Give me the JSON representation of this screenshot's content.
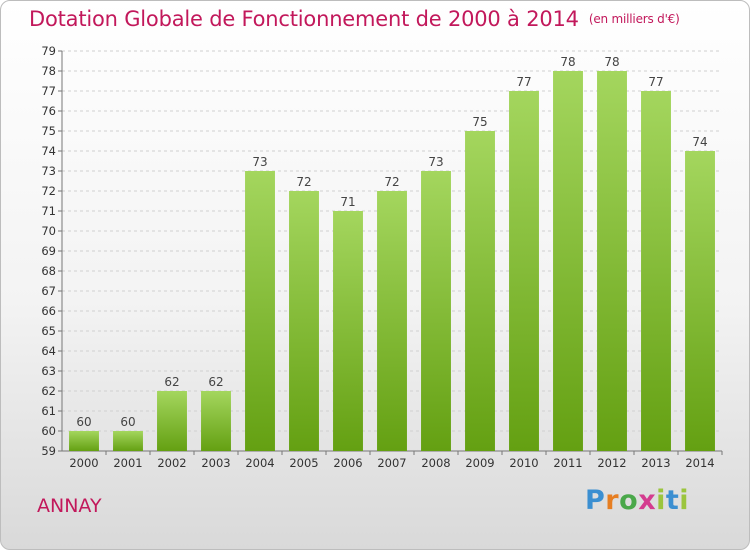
{
  "header": {
    "title": "Dotation Globale de Fonctionnement de 2000 à 2014",
    "unit": "(en milliers d'€)"
  },
  "footer": {
    "city": "ANNAY",
    "logo": [
      "P",
      "r",
      "o",
      "x",
      "i",
      "t",
      "i"
    ]
  },
  "colors": {
    "title": "#c2185b",
    "bar_light": "#a4d65e",
    "bar_dark": "#64a012"
  },
  "chart_data": {
    "type": "bar",
    "title": "Dotation Globale de Fonctionnement de 2000 à 2014",
    "subtitle": "(en milliers d'€)",
    "xlabel": "",
    "ylabel": "",
    "categories": [
      "2000",
      "2001",
      "2002",
      "2003",
      "2004",
      "2005",
      "2006",
      "2007",
      "2008",
      "2009",
      "2010",
      "2011",
      "2012",
      "2013",
      "2014"
    ],
    "values": [
      60,
      60,
      62,
      62,
      73,
      72,
      71,
      72,
      73,
      75,
      77,
      78,
      78,
      77,
      74
    ],
    "ylim": [
      59,
      79
    ],
    "yticks": [
      59,
      60,
      61,
      62,
      63,
      64,
      65,
      66,
      67,
      68,
      69,
      70,
      71,
      72,
      73,
      74,
      75,
      76,
      77,
      78,
      79
    ],
    "grid": true,
    "data_labels": true
  }
}
